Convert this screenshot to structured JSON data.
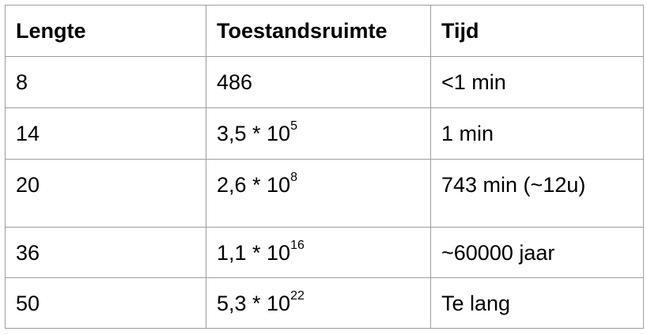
{
  "table": {
    "headers": [
      "Lengte",
      "Toestandsruimte",
      "Tijd"
    ],
    "rows": [
      {
        "lengte": "8",
        "ruimte_base": "486",
        "ruimte_exp": "",
        "tijd": "<1 min"
      },
      {
        "lengte": "14",
        "ruimte_base": "3,5 * 10",
        "ruimte_exp": "5",
        "tijd": "1 min"
      },
      {
        "lengte": "20",
        "ruimte_base": "2,6 * 10",
        "ruimte_exp": "8",
        "tijd": "743 min (~12u)"
      },
      {
        "lengte": "36",
        "ruimte_base": "1,1 * 10",
        "ruimte_exp": "16",
        "tijd": "~60000 jaar"
      },
      {
        "lengte": "50",
        "ruimte_base": "5,3 * 10",
        "ruimte_exp": "22",
        "tijd": "Te lang"
      }
    ]
  }
}
